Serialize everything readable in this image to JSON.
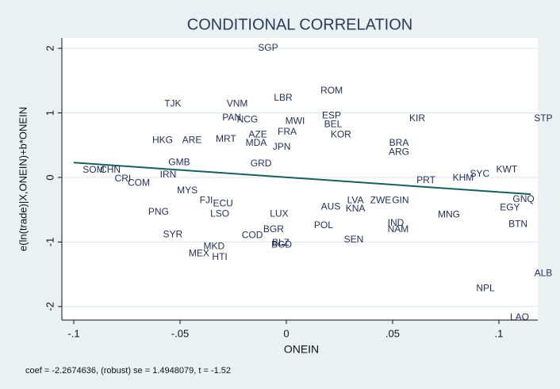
{
  "chart_data": {
    "type": "scatter",
    "title": "CONDITIONAL CORRELATION",
    "x_label": "ONEIN",
    "y_label": "e(ln(trade)|X,ONEIN)+b*ONEIN",
    "note": "coef = -2.2674636, (robust) se = 1.4948079, t = -1.52",
    "xlim": [
      -0.1056,
      0.1183
    ],
    "ylim": [
      -2.21,
      2.16
    ],
    "xticks": [
      {
        "value": -0.1,
        "label": "-.1"
      },
      {
        "value": -0.05,
        "label": "-.05"
      },
      0,
      {
        "value": 0.05,
        "label": ".05"
      },
      {
        "value": 0.1,
        "label": ".1"
      }
    ],
    "yticks": [
      -2,
      -1,
      0,
      1,
      2
    ],
    "grid": true,
    "color": "#1f2d5c",
    "fit_color": "#1b5e5e",
    "fit": {
      "x": [
        -0.1,
        0.115
      ],
      "y": [
        0.23,
        -0.26
      ]
    },
    "labels": [
      "SGP",
      "ROM",
      "LBR",
      "TJK",
      "VNM",
      "KIR",
      "STP",
      "PAN",
      "NCG",
      "MWI",
      "ESP",
      "BEL",
      "KOR",
      "HKG",
      "ARE",
      "MRT",
      "AZE",
      "FRA",
      "MDA",
      "JPN",
      "BRA",
      "ARG",
      "KWT",
      "SYC",
      "KHM",
      "GMB",
      "SOM",
      "CHN",
      "CRI",
      "COM",
      "MYS",
      "IRN",
      "PNG",
      "FJI",
      "SYR",
      "MKD",
      "MEX",
      "HTI",
      "LSO",
      "BGR",
      "COD",
      "BLZ",
      "BGD",
      "POL",
      "SEN",
      "NAM",
      "IND",
      "GIN",
      "ZWE",
      "MNG",
      "GNQ",
      "EGY",
      "BTN",
      "ALB",
      "NPL",
      "LAO",
      "AUS",
      "KNA",
      "LVA",
      "PRT",
      "GRD",
      "ECU",
      "LUX"
    ],
    "x": [
      -0.0086,
      0.0213,
      -0.0015,
      -0.0534,
      -0.0231,
      0.0616,
      0.1209,
      -0.0257,
      -0.0183,
      0.0041,
      0.0213,
      0.022,
      0.0257,
      -0.0582,
      -0.0444,
      -0.0284,
      -0.0134,
      0.0004,
      -0.0142,
      -0.0022,
      0.053,
      0.053,
      0.1037,
      0.091,
      0.0832,
      -0.0504,
      -0.0907,
      -0.0828,
      -0.0769,
      -0.0694,
      -0.0466,
      -0.0556,
      -0.0601,
      -0.0377,
      -0.0534,
      -0.034,
      -0.0411,
      -0.0313,
      -0.0313,
      -0.006,
      -0.016,
      -0.0026,
      -0.0022,
      0.0175,
      0.0317,
      0.0526,
      0.0515,
      0.0537,
      0.0444,
      0.0765,
      0.1116,
      0.1052,
      0.109,
      0.1209,
      0.0937,
      0.1097,
      0.0209,
      0.0325,
      0.0325,
      0.0657,
      -0.0119,
      -0.0298,
      -0.0034
    ],
    "y": [
      2.0,
      1.34,
      1.23,
      1.14,
      1.14,
      0.91,
      0.91,
      0.92,
      0.89,
      0.87,
      0.95,
      0.82,
      0.66,
      0.57,
      0.57,
      0.59,
      0.66,
      0.7,
      0.53,
      0.47,
      0.53,
      0.39,
      0.12,
      0.05,
      -0.01,
      0.23,
      0.11,
      0.11,
      -0.02,
      -0.09,
      -0.21,
      0.04,
      -0.54,
      -0.36,
      -0.89,
      -1.07,
      -1.18,
      -1.24,
      -0.57,
      -0.81,
      -0.9,
      -1.02,
      -1.05,
      -0.75,
      -0.97,
      -0.81,
      -0.71,
      -0.36,
      -0.36,
      -0.58,
      -0.34,
      -0.47,
      -0.73,
      -1.49,
      -1.72,
      -2.17,
      -0.46,
      -0.49,
      -0.36,
      -0.05,
      0.21,
      -0.41,
      -0.57
    ]
  }
}
